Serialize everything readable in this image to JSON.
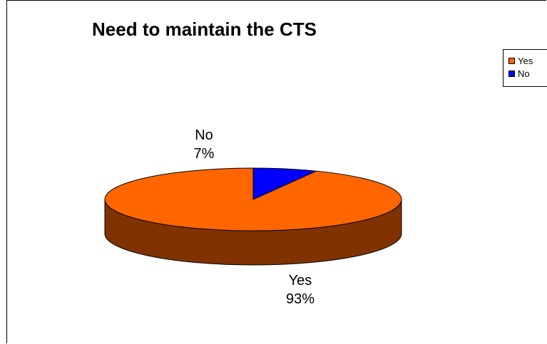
{
  "chart_data": {
    "type": "pie",
    "title": "Need to maintain the CTS",
    "categories": [
      "Yes",
      "No"
    ],
    "values": [
      93,
      7
    ],
    "labels": [
      "93%",
      "7%"
    ],
    "colors": {
      "Yes": {
        "top": "#FF6600",
        "side": "#803300"
      },
      "No": {
        "top": "#0000FF",
        "side": "#000080"
      }
    },
    "legend": {
      "placement": "right",
      "entries": [
        "Yes",
        "No"
      ]
    },
    "grid": false,
    "style": "3d"
  }
}
